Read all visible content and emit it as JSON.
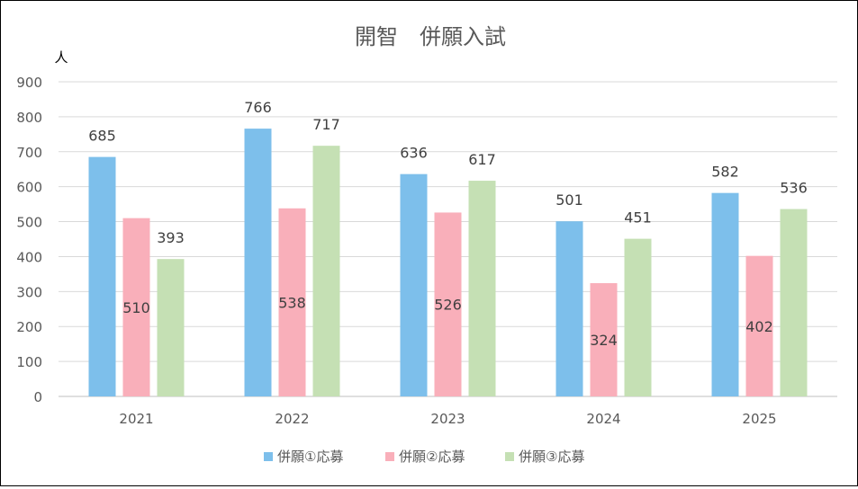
{
  "chart_data": {
    "type": "bar",
    "title": "開智　併願入試",
    "ylabel": "人",
    "xlabel": "",
    "categories": [
      "2021",
      "2022",
      "2023",
      "2024",
      "2025"
    ],
    "series": [
      {
        "name": "併願①応募",
        "values": [
          685,
          766,
          636,
          501,
          582
        ],
        "color": "#7DBFEB"
      },
      {
        "name": "併願②応募",
        "values": [
          510,
          538,
          526,
          324,
          402
        ],
        "color": "#F9AFBA"
      },
      {
        "name": "併願③応募",
        "values": [
          393,
          717,
          617,
          451,
          536
        ],
        "color": "#C5E0B4"
      }
    ],
    "ylim": [
      0,
      900
    ],
    "yticks": [
      0,
      100,
      200,
      300,
      400,
      500,
      600,
      700,
      800,
      900
    ],
    "grid": true,
    "legend_position": "bottom",
    "data_label_position": [
      "above",
      "inside",
      "above"
    ]
  }
}
